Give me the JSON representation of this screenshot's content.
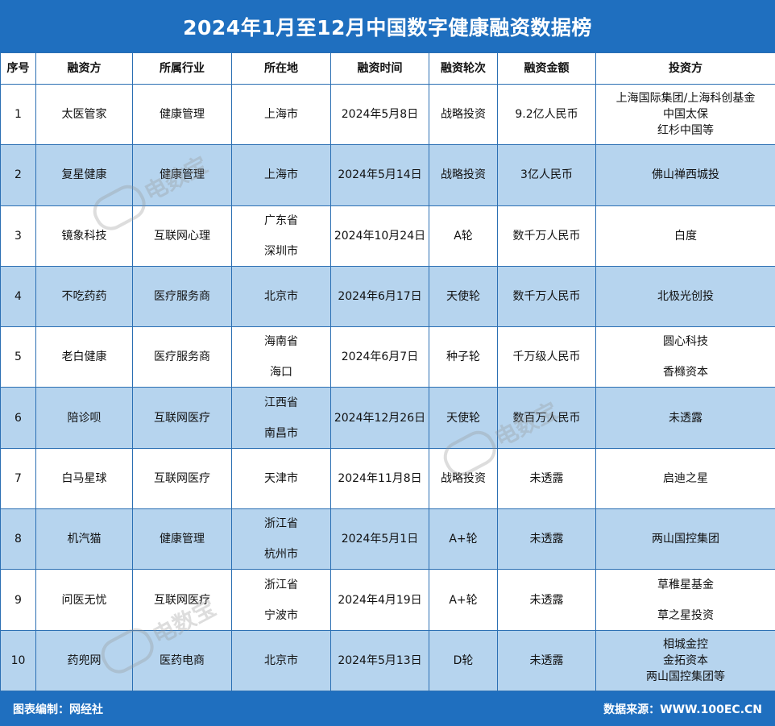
{
  "title": "2024年1月至12月中国数字健康融资数据榜",
  "columns": [
    "序号",
    "融资方",
    "所属行业",
    "所在地",
    "融资时间",
    "融资轮次",
    "融资金额",
    "投资方"
  ],
  "rows": [
    {
      "no": "1",
      "company": "太医管家",
      "industry": "健康管理",
      "location": [
        "上海市"
      ],
      "date": "2024年5月8日",
      "round": "战略投资",
      "amount": "9.2亿人民币",
      "investors": [
        "上海国际集团/上海科创基金",
        "中国太保",
        "红杉中国等"
      ]
    },
    {
      "no": "2",
      "company": "复星健康",
      "industry": "健康管理",
      "location": [
        "上海市"
      ],
      "date": "2024年5月14日",
      "round": "战略投资",
      "amount": "3亿人民币",
      "investors": [
        "佛山禅西城投"
      ]
    },
    {
      "no": "3",
      "company": "镜象科技",
      "industry": "互联网心理",
      "location": [
        "广东省",
        "深圳市"
      ],
      "date": "2024年10月24日",
      "round": "A轮",
      "amount": "数千万人民币",
      "investors": [
        "白度"
      ]
    },
    {
      "no": "4",
      "company": "不吃药药",
      "industry": "医疗服务商",
      "location": [
        "北京市"
      ],
      "date": "2024年6月17日",
      "round": "天使轮",
      "amount": "数千万人民币",
      "investors": [
        "北极光创投"
      ]
    },
    {
      "no": "5",
      "company": "老白健康",
      "industry": "医疗服务商",
      "location": [
        "海南省",
        "海口"
      ],
      "date": "2024年6月7日",
      "round": "种子轮",
      "amount": "千万级人民币",
      "investors": [
        "圆心科技",
        "香橼资本"
      ]
    },
    {
      "no": "6",
      "company": "陪诊呗",
      "industry": "互联网医疗",
      "location": [
        "江西省",
        "南昌市"
      ],
      "date": "2024年12月26日",
      "round": "天使轮",
      "amount": "数百万人民币",
      "investors": [
        "未透露"
      ]
    },
    {
      "no": "7",
      "company": "白马星球",
      "industry": "互联网医疗",
      "location": [
        "天津市"
      ],
      "date": "2024年11月8日",
      "round": "战略投资",
      "amount": "未透露",
      "investors": [
        "启迪之星"
      ]
    },
    {
      "no": "8",
      "company": "机汽猫",
      "industry": "健康管理",
      "location": [
        "浙江省",
        "杭州市"
      ],
      "date": "2024年5月1日",
      "round": "A+轮",
      "amount": "未透露",
      "investors": [
        "两山国控集团"
      ]
    },
    {
      "no": "9",
      "company": "问医无忧",
      "industry": "互联网医疗",
      "location": [
        "浙江省",
        "宁波市"
      ],
      "date": "2024年4月19日",
      "round": "A+轮",
      "amount": "未透露",
      "investors": [
        "草稚星基金",
        "草之星投资"
      ]
    },
    {
      "no": "10",
      "company": "药兜网",
      "industry": "医药电商",
      "location": [
        "北京市"
      ],
      "date": "2024年5月13日",
      "round": "D轮",
      "amount": "未透露",
      "investors": [
        "相城金控",
        "金拓资本",
        "两山国控集团等"
      ]
    }
  ],
  "footer": {
    "left": "图表编制：网经社",
    "right": "数据来源：WWW.100EC.CN"
  },
  "watermark": {
    "logo": "eDT",
    "text": "电数宝"
  },
  "colors": {
    "header_bg": "#1f6fbf",
    "row_shade": "#b6d4ee",
    "border": "#2b6fb3"
  }
}
